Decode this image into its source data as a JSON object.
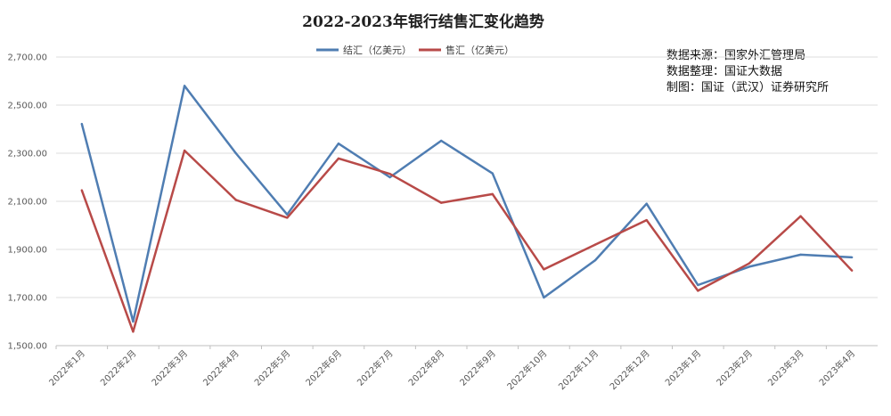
{
  "chart_data": {
    "type": "line",
    "title": "2022-2023年银行结售汇变化趋势",
    "categories": [
      "2022年1月",
      "2022年2月",
      "2022年3月",
      "2022年4月",
      "2022年5月",
      "2022年6月",
      "2022年7月",
      "2022年8月",
      "2022年9月",
      "2022年10月",
      "2022年11月",
      "2022年12月",
      "2023年1月",
      "2023年2月",
      "2023年3月",
      "2023年4月"
    ],
    "series": [
      {
        "name": "结汇（亿美元）",
        "color": "#4f7db2",
        "values": [
          2422,
          1600,
          2580,
          2300,
          2045,
          2340,
          2200,
          2352,
          2216,
          1700,
          1855,
          2090,
          1752,
          1828,
          1878,
          1867
        ]
      },
      {
        "name": "售汇（亿美元）",
        "color": "#b84a48",
        "values": [
          2146,
          1558,
          2311,
          2106,
          2032,
          2278,
          2214,
          2094,
          2130,
          1817,
          1920,
          2022,
          1728,
          1842,
          2038,
          1812
        ]
      }
    ],
    "ylim": [
      1500,
      2700
    ],
    "yticks": [
      "1,500.00",
      "1,700.00",
      "1,900.00",
      "2,100.00",
      "2,300.00",
      "2,500.00",
      "2,700.00"
    ],
    "grid": true,
    "legend": "top",
    "xlabel": "",
    "ylabel": "",
    "annotations": [
      "数据来源：国家外汇管理局",
      "数据整理：国证大数据",
      "制图：国证（武汉）证券研究所"
    ]
  }
}
